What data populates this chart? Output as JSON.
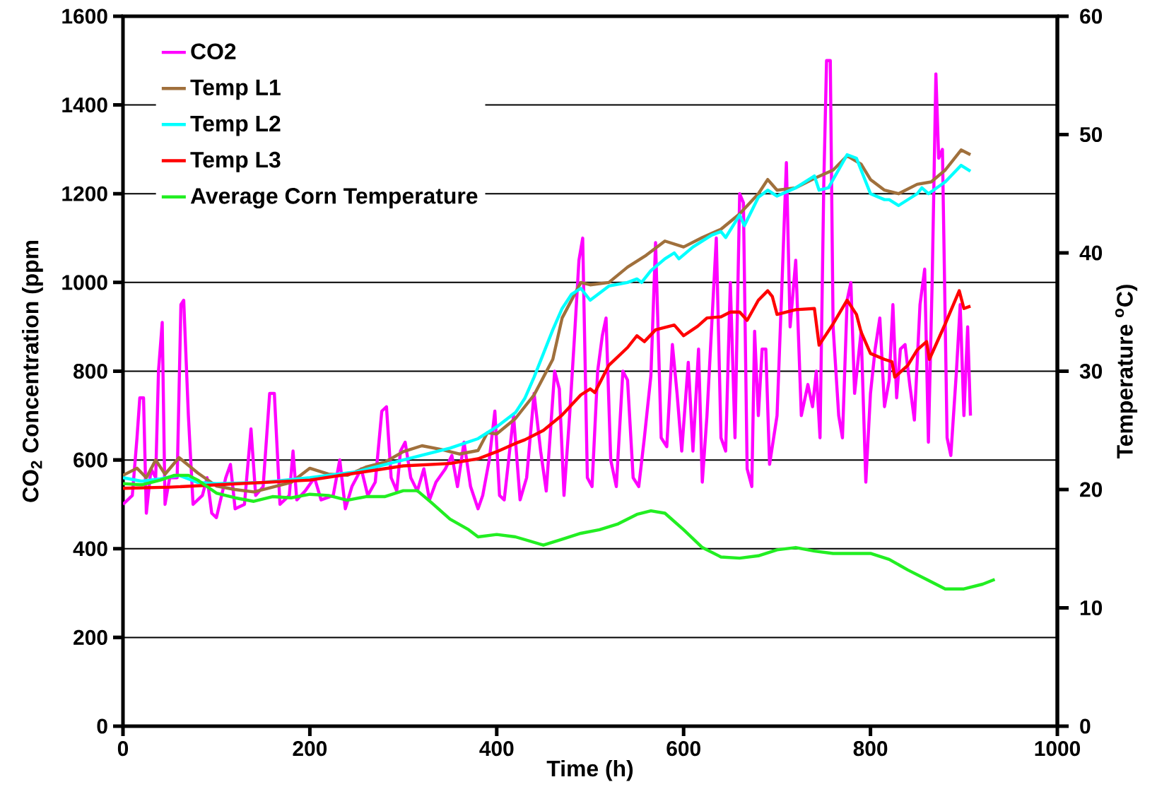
{
  "chart_data": {
    "type": "line",
    "xlabel": "Time (h)",
    "ylabel": "CO$_{2}$ Concentration (ppm",
    "y2label": "Temperature $^{o}$C)",
    "xlim": [
      0,
      1000
    ],
    "xticks": [
      0,
      200,
      400,
      600,
      800,
      1000
    ],
    "ylim": [
      0,
      1600
    ],
    "yticks": [
      0,
      200,
      400,
      600,
      800,
      1000,
      1200,
      1400,
      1600
    ],
    "y2lim": [
      0,
      60
    ],
    "y2ticks": [
      0,
      10,
      20,
      30,
      40,
      50,
      60
    ],
    "grid": "y",
    "legend": "top left",
    "series": [
      {
        "name": "CO2",
        "color": "#ff00ff",
        "x": [
          0,
          10,
          15,
          18,
          22,
          25,
          30,
          35,
          38,
          42,
          45,
          50,
          58,
          62,
          65,
          70,
          75,
          85,
          90,
          95,
          100,
          110,
          115,
          120,
          130,
          137,
          142,
          150,
          157,
          162,
          168,
          178,
          182,
          186,
          195,
          205,
          212,
          225,
          232,
          238,
          245,
          255,
          262,
          270,
          277,
          282,
          287,
          293,
          297,
          302,
          308,
          315,
          322,
          328,
          335,
          345,
          352,
          358,
          365,
          372,
          380,
          385,
          392,
          398,
          403,
          408,
          418,
          425,
          432,
          440,
          447,
          453,
          462,
          467,
          472,
          478,
          483,
          488,
          492,
          497,
          502,
          508,
          513,
          517,
          522,
          528,
          535,
          540,
          546,
          552,
          558,
          565,
          570,
          576,
          582,
          588,
          593,
          598,
          605,
          610,
          616,
          620,
          625,
          630,
          635,
          640,
          645,
          650,
          655,
          660,
          664,
          668,
          673,
          676,
          680,
          684,
          688,
          692,
          700,
          705,
          710,
          714,
          720,
          726,
          733,
          738,
          742,
          746,
          750,
          753,
          757,
          760,
          766,
          770,
          775,
          779,
          783,
          790,
          795,
          800,
          805,
          810,
          815,
          820,
          824,
          828,
          832,
          837,
          842,
          847,
          853,
          858,
          862,
          866,
          870,
          873,
          877,
          882,
          886,
          892,
          896,
          900,
          904,
          907
        ],
        "values": [
          500,
          520,
          650,
          740,
          740,
          480,
          580,
          560,
          800,
          910,
          500,
          560,
          560,
          950,
          960,
          700,
          500,
          520,
          560,
          480,
          470,
          560,
          590,
          490,
          500,
          670,
          520,
          540,
          750,
          750,
          500,
          520,
          620,
          510,
          530,
          560,
          510,
          520,
          600,
          490,
          540,
          580,
          520,
          550,
          710,
          720,
          560,
          530,
          620,
          640,
          560,
          530,
          580,
          510,
          550,
          580,
          610,
          540,
          640,
          540,
          490,
          520,
          600,
          710,
          520,
          510,
          700,
          510,
          560,
          750,
          620,
          530,
          800,
          760,
          520,
          700,
          870,
          1050,
          1100,
          560,
          540,
          800,
          880,
          920,
          600,
          540,
          800,
          780,
          560,
          540,
          650,
          790,
          1090,
          650,
          630,
          860,
          750,
          620,
          820,
          620,
          850,
          550,
          700,
          900,
          1100,
          650,
          620,
          1000,
          650,
          1200,
          1180,
          580,
          540,
          890,
          700,
          850,
          850,
          590,
          700,
          980,
          1270,
          900,
          1050,
          700,
          770,
          720,
          800,
          650,
          1220,
          1500,
          1500,
          900,
          700,
          650,
          960,
          1000,
          750,
          890,
          550,
          750,
          850,
          920,
          720,
          780,
          950,
          740,
          850,
          860,
          770,
          690,
          950,
          1030,
          640,
          1000,
          1470,
          1280,
          1300,
          650,
          610,
          800,
          950,
          700,
          900,
          700
        ]
      },
      {
        "name": "Temp L1",
        "color": "#a0703c",
        "axis": "y2",
        "x": [
          0,
          15,
          25,
          35,
          45,
          60,
          80,
          100,
          120,
          140,
          160,
          180,
          200,
          220,
          240,
          260,
          280,
          300,
          320,
          340,
          360,
          380,
          390,
          400,
          420,
          440,
          460,
          470,
          480,
          490,
          500,
          520,
          540,
          560,
          580,
          600,
          620,
          640,
          660,
          680,
          690,
          700,
          720,
          740,
          760,
          775,
          790,
          800,
          815,
          830,
          850,
          865,
          880,
          897,
          907
        ],
        "values": [
          21.2,
          21.8,
          21.0,
          22.5,
          21.3,
          22.7,
          21.4,
          20.3,
          20.0,
          19.8,
          20.2,
          20.6,
          21.8,
          21.3,
          21.2,
          21.9,
          22.3,
          23.2,
          23.7,
          23.4,
          23.0,
          23.3,
          24.8,
          24.7,
          26.0,
          28.0,
          31.0,
          34.5,
          36.0,
          37.5,
          37.3,
          37.5,
          38.8,
          39.8,
          41.0,
          40.5,
          41.3,
          42.0,
          43.3,
          45.0,
          46.2,
          45.3,
          45.5,
          46.3,
          47.0,
          48.2,
          47.5,
          46.2,
          45.3,
          45.0,
          45.8,
          46.0,
          47.0,
          48.7,
          48.3
        ]
      },
      {
        "name": "Temp L2",
        "color": "#00ffff",
        "axis": "y2",
        "x": [
          0,
          20,
          40,
          60,
          80,
          100,
          150,
          200,
          250,
          300,
          350,
          380,
          400,
          420,
          430,
          440,
          460,
          470,
          480,
          490,
          500,
          520,
          540,
          550,
          555,
          565,
          580,
          590,
          595,
          610,
          630,
          640,
          645,
          660,
          665,
          680,
          690,
          700,
          720,
          740,
          745,
          755,
          775,
          785,
          800,
          815,
          820,
          830,
          850,
          855,
          862,
          880,
          897,
          907
        ],
        "values": [
          21.0,
          20.7,
          20.9,
          21.2,
          20.6,
          20.5,
          20.6,
          21.0,
          21.5,
          22.5,
          23.5,
          24.3,
          25.3,
          26.5,
          27.7,
          29.5,
          33.5,
          35.3,
          36.5,
          37.0,
          36.0,
          37.2,
          37.5,
          37.8,
          37.5,
          38.5,
          39.5,
          40.0,
          39.5,
          40.5,
          41.5,
          41.8,
          41.3,
          43.2,
          42.3,
          44.7,
          45.3,
          44.8,
          45.5,
          46.5,
          45.3,
          45.5,
          48.3,
          48.0,
          45.0,
          44.5,
          44.5,
          44.0,
          45.0,
          45.5,
          45.0,
          46.0,
          47.4,
          46.9
        ]
      },
      {
        "name": "Temp L3",
        "color": "#ff0000",
        "axis": "y2",
        "x": [
          0,
          50,
          100,
          150,
          200,
          250,
          300,
          350,
          380,
          400,
          420,
          430,
          450,
          470,
          490,
          500,
          505,
          520,
          540,
          550,
          558,
          570,
          590,
          600,
          615,
          625,
          640,
          650,
          660,
          668,
          680,
          690,
          695,
          700,
          720,
          740,
          745,
          760,
          775,
          785,
          790,
          800,
          815,
          823,
          826,
          840,
          850,
          860,
          863,
          880,
          895,
          900,
          907
        ],
        "values": [
          20.1,
          20.2,
          20.4,
          20.6,
          20.8,
          21.4,
          22.0,
          22.2,
          22.6,
          23.2,
          23.9,
          24.2,
          25.0,
          26.3,
          28.0,
          28.5,
          28.2,
          30.5,
          32.0,
          33.0,
          32.5,
          33.5,
          33.9,
          33.0,
          33.8,
          34.5,
          34.6,
          35.0,
          35.0,
          34.3,
          36.0,
          36.8,
          36.3,
          34.8,
          35.2,
          35.3,
          32.2,
          34.0,
          36.0,
          34.8,
          33.3,
          31.5,
          31.0,
          30.8,
          29.5,
          30.5,
          31.8,
          32.5,
          31.0,
          34.0,
          36.8,
          35.3,
          35.5
        ]
      },
      {
        "name": "Average Corn Temperature",
        "color": "#22ee22",
        "axis": "y2",
        "x": [
          0,
          20,
          40,
          55,
          70,
          80,
          100,
          120,
          140,
          160,
          180,
          200,
          220,
          240,
          260,
          280,
          300,
          315,
          330,
          350,
          370,
          380,
          400,
          420,
          450,
          470,
          490,
          510,
          530,
          550,
          565,
          580,
          600,
          620,
          640,
          660,
          680,
          700,
          720,
          740,
          760,
          780,
          800,
          820,
          840,
          860,
          880,
          900,
          920,
          933
        ],
        "values": [
          20.5,
          20.4,
          20.8,
          21.2,
          21.2,
          20.8,
          19.7,
          19.3,
          19.0,
          19.4,
          19.3,
          19.6,
          19.5,
          19.1,
          19.4,
          19.4,
          19.9,
          19.9,
          18.9,
          17.5,
          16.6,
          16.0,
          16.2,
          16.0,
          15.3,
          15.8,
          16.3,
          16.6,
          17.1,
          17.9,
          18.2,
          18.0,
          16.6,
          15.1,
          14.3,
          14.2,
          14.4,
          14.9,
          15.1,
          14.8,
          14.6,
          14.6,
          14.6,
          14.1,
          13.2,
          12.4,
          11.6,
          11.6,
          12.0,
          12.4
        ]
      }
    ]
  }
}
